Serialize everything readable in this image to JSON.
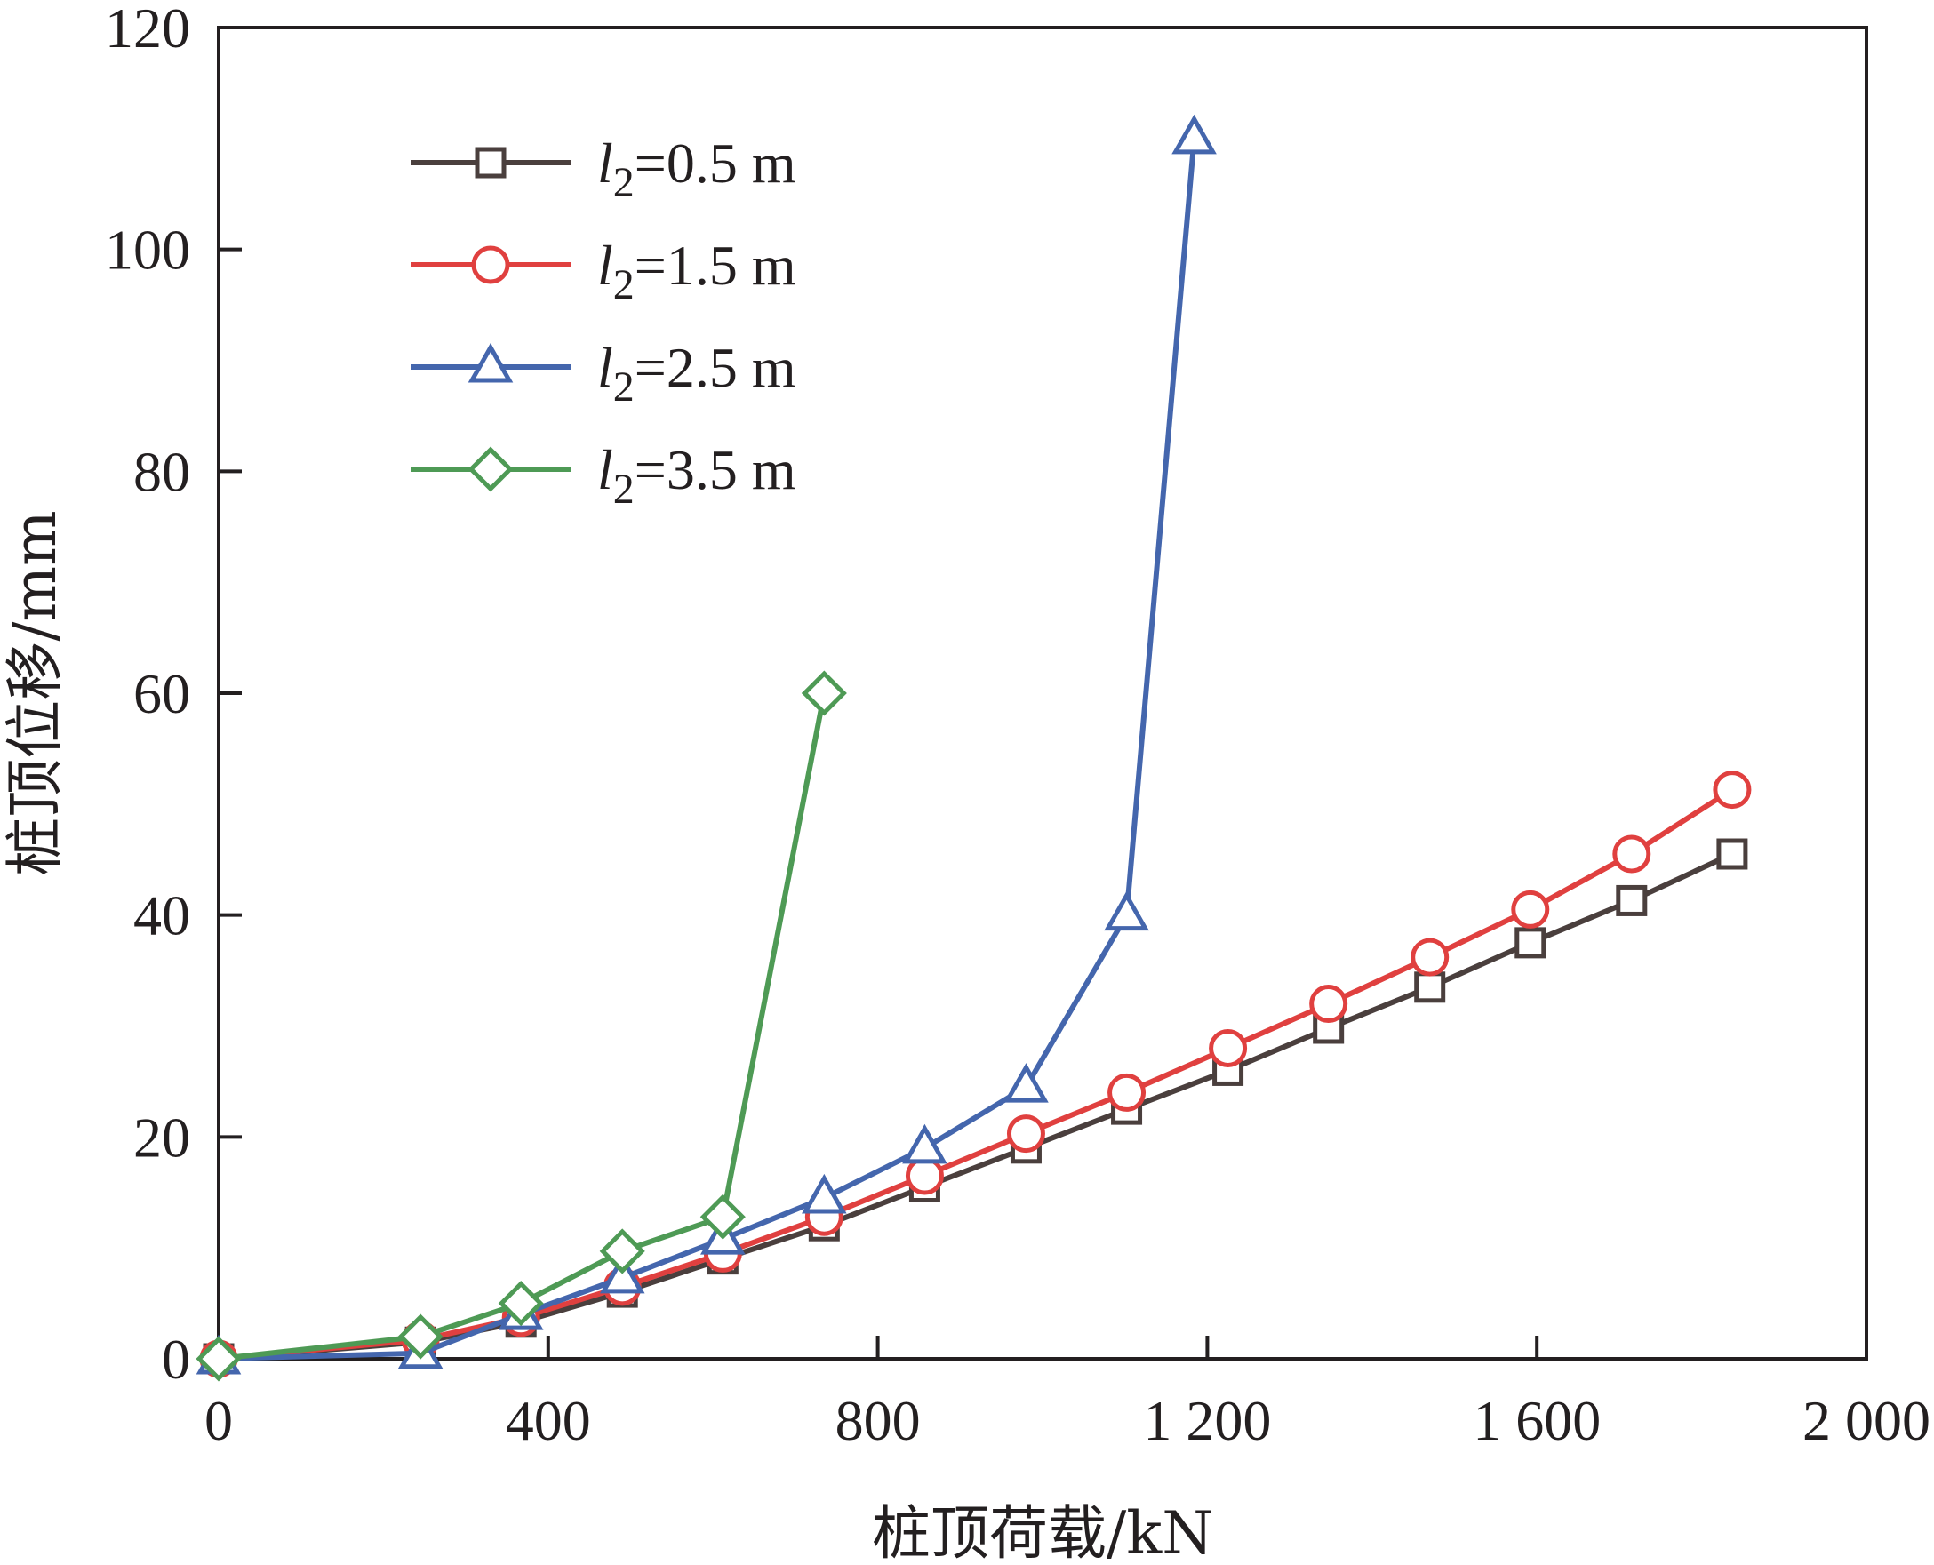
{
  "chart_data": {
    "type": "line",
    "title": "",
    "xlabel": "桩顶荷载/kN",
    "ylabel": "桩顶位移/mm",
    "xlim": [
      0,
      2000
    ],
    "ylim": [
      0,
      120
    ],
    "x_ticks": [
      0,
      400,
      800,
      1200,
      1600,
      2000
    ],
    "x_tick_labels": [
      "0",
      "400",
      "800",
      "1 200",
      "1 600",
      "2 000"
    ],
    "y_ticks": [
      0,
      20,
      40,
      60,
      80,
      100,
      120
    ],
    "y_tick_labels": [
      "0",
      "20",
      "40",
      "60",
      "80",
      "100",
      "120"
    ],
    "grid": false,
    "legend_position": "top-left",
    "series": [
      {
        "name": "l2=0.5 m",
        "legend_var": "l",
        "legend_sub": "2",
        "legend_rest": "=0.5 m",
        "marker": "square",
        "color": "#4a3f3d",
        "points": [
          [
            0,
            0
          ],
          [
            245,
            1.5
          ],
          [
            367,
            3.3
          ],
          [
            490,
            6
          ],
          [
            612,
            9
          ],
          [
            735,
            12
          ],
          [
            857,
            15.5
          ],
          [
            980,
            19
          ],
          [
            1102,
            22.5
          ],
          [
            1225,
            26
          ],
          [
            1347,
            29.8
          ],
          [
            1470,
            33.5
          ],
          [
            1592,
            37.5
          ],
          [
            1715,
            41.3
          ],
          [
            1837,
            45.5
          ]
        ]
      },
      {
        "name": "l2=1.5 m",
        "legend_var": "l",
        "legend_sub": "2",
        "legend_rest": "=1.5 m",
        "marker": "circle",
        "color": "#e0403f",
        "points": [
          [
            0,
            0
          ],
          [
            245,
            1.7
          ],
          [
            367,
            3.7
          ],
          [
            490,
            6.5
          ],
          [
            612,
            9.5
          ],
          [
            735,
            12.8
          ],
          [
            857,
            16.5
          ],
          [
            980,
            20.3
          ],
          [
            1102,
            24
          ],
          [
            1225,
            28
          ],
          [
            1347,
            32
          ],
          [
            1470,
            36.2
          ],
          [
            1592,
            40.5
          ],
          [
            1715,
            45.5
          ],
          [
            1837,
            51.3
          ]
        ]
      },
      {
        "name": "l2=2.5 m",
        "legend_var": "l",
        "legend_sub": "2",
        "legend_rest": "=2.5 m",
        "marker": "triangle",
        "color": "#4466ad",
        "points": [
          [
            0,
            0
          ],
          [
            245,
            0.5
          ],
          [
            367,
            4
          ],
          [
            490,
            7.3
          ],
          [
            612,
            10.8
          ],
          [
            735,
            14.5
          ],
          [
            857,
            19
          ],
          [
            980,
            24.5
          ],
          [
            1102,
            40
          ],
          [
            1184,
            110
          ]
        ]
      },
      {
        "name": "l2=3.5 m",
        "legend_var": "l",
        "legend_sub": "2",
        "legend_rest": "=3.5 m",
        "marker": "diamond",
        "color": "#4e9a55",
        "points": [
          [
            0,
            0
          ],
          [
            245,
            2
          ],
          [
            367,
            5
          ],
          [
            490,
            9.7
          ],
          [
            612,
            12.8
          ],
          [
            735,
            60
          ]
        ]
      }
    ]
  }
}
